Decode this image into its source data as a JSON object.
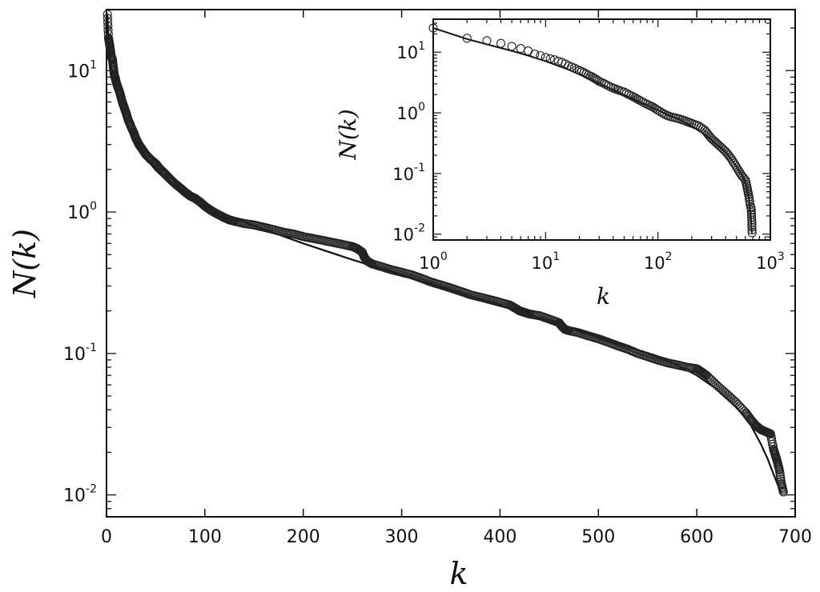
{
  "chart_data": [
    {
      "type": "scatter",
      "title": "",
      "xlabel": "k",
      "ylabel": "N(k)",
      "xlim": [
        0,
        700
      ],
      "ylim": [
        0.007,
        27
      ],
      "yscale": "log",
      "xticks": [
        0,
        100,
        200,
        300,
        400,
        500,
        600,
        700
      ],
      "xtick_labels": [
        "0",
        "100",
        "200",
        "300",
        "400",
        "500",
        "600",
        "700"
      ],
      "yticks": [
        0.01,
        0.1,
        1,
        10
      ],
      "ytick_labels": [
        {
          "base": "10",
          "exp": "-2"
        },
        {
          "base": "10",
          "exp": "-1"
        },
        {
          "base": "10",
          "exp": "0"
        },
        {
          "base": "10",
          "exp": "1"
        }
      ],
      "grid": false,
      "legend": false,
      "series": [
        {
          "style": "open-circles",
          "x": [
            1,
            2,
            3,
            4,
            5,
            6,
            7,
            8,
            9,
            10,
            12,
            14,
            16,
            18,
            20,
            22,
            25,
            28,
            30,
            33,
            36,
            40,
            45,
            50,
            55,
            60,
            65,
            70,
            75,
            80,
            85,
            90,
            95,
            100,
            105,
            110,
            115,
            120,
            125,
            130,
            140,
            150,
            160,
            170,
            180,
            190,
            200,
            210,
            220,
            230,
            240,
            250,
            255,
            260,
            262,
            265,
            270,
            280,
            290,
            300,
            310,
            320,
            330,
            340,
            350,
            360,
            370,
            380,
            390,
            400,
            410,
            415,
            420,
            425,
            430,
            440,
            450,
            460,
            463,
            466,
            470,
            480,
            490,
            500,
            510,
            520,
            530,
            540,
            550,
            560,
            570,
            580,
            590,
            600,
            605,
            610,
            620,
            630,
            640,
            650,
            655,
            660,
            665,
            670,
            675,
            678,
            680,
            682,
            684,
            686,
            688
          ],
          "y": [
            25,
            17,
            15.5,
            14,
            12.5,
            12,
            10.5,
            9.3,
            8.8,
            8.2,
            7.5,
            6.8,
            6,
            5.5,
            5,
            4.5,
            4,
            3.6,
            3.3,
            3,
            2.8,
            2.55,
            2.35,
            2.2,
            2,
            1.85,
            1.7,
            1.58,
            1.48,
            1.38,
            1.3,
            1.25,
            1.18,
            1.1,
            1.04,
            0.99,
            0.95,
            0.91,
            0.88,
            0.86,
            0.83,
            0.81,
            0.78,
            0.75,
            0.72,
            0.7,
            0.67,
            0.65,
            0.63,
            0.61,
            0.59,
            0.57,
            0.55,
            0.52,
            0.48,
            0.45,
            0.43,
            0.41,
            0.39,
            0.375,
            0.36,
            0.34,
            0.32,
            0.305,
            0.29,
            0.275,
            0.26,
            0.25,
            0.24,
            0.23,
            0.22,
            0.21,
            0.2,
            0.195,
            0.19,
            0.185,
            0.175,
            0.165,
            0.155,
            0.148,
            0.145,
            0.14,
            0.133,
            0.127,
            0.12,
            0.113,
            0.107,
            0.1,
            0.095,
            0.09,
            0.086,
            0.083,
            0.08,
            0.078,
            0.074,
            0.07,
            0.06,
            0.052,
            0.045,
            0.038,
            0.034,
            0.031,
            0.029,
            0.028,
            0.027,
            0.021,
            0.019,
            0.017,
            0.015,
            0.012,
            0.0105
          ]
        },
        {
          "style": "line",
          "x": [
            1,
            2,
            3,
            5,
            7,
            10,
            15,
            20,
            30,
            40,
            50,
            60,
            80,
            100,
            125,
            150,
            200,
            250,
            300,
            350,
            400,
            450,
            500,
            550,
            580,
            600,
            620,
            640,
            655,
            665,
            672,
            678,
            683,
            686
          ],
          "y": [
            25,
            16.5,
            13.5,
            10.5,
            8.8,
            7.1,
            5.4,
            4.3,
            3.05,
            2.4,
            1.98,
            1.7,
            1.33,
            1.1,
            0.92,
            0.8,
            0.6,
            0.46,
            0.36,
            0.28,
            0.22,
            0.17,
            0.13,
            0.1,
            0.083,
            0.07,
            0.056,
            0.042,
            0.031,
            0.023,
            0.018,
            0.014,
            0.0115,
            0.0103
          ]
        }
      ]
    },
    {
      "type": "scatter",
      "title": "",
      "xlabel": "k",
      "ylabel": "N(k)",
      "xscale": "log",
      "yscale": "log",
      "xlim": [
        1,
        1000
      ],
      "ylim": [
        0.008,
        35
      ],
      "xticks": [
        1,
        10,
        100,
        1000
      ],
      "xtick_labels": [
        {
          "base": "10",
          "exp": "0"
        },
        {
          "base": "10",
          "exp": "1"
        },
        {
          "base": "10",
          "exp": "2"
        },
        {
          "base": "10",
          "exp": "3"
        }
      ],
      "yticks": [
        0.01,
        0.1,
        1,
        10
      ],
      "ytick_labels": [
        {
          "base": "10",
          "exp": "-2"
        },
        {
          "base": "10",
          "exp": "-1"
        },
        {
          "base": "10",
          "exp": "0"
        },
        {
          "base": "10",
          "exp": "1"
        }
      ],
      "grid": false,
      "legend": false,
      "series": [
        {
          "style": "open-circles",
          "x": [
            1,
            2,
            3,
            4,
            5,
            6,
            7,
            8,
            9,
            10,
            11,
            12,
            13,
            14,
            15,
            16,
            17,
            18,
            19,
            20,
            22,
            24,
            26,
            28,
            30,
            33,
            36,
            40,
            45,
            50,
            55,
            60,
            70,
            80,
            90,
            100,
            110,
            120,
            130,
            150,
            170,
            200,
            230,
            260,
            300,
            350,
            400,
            450,
            500,
            550,
            600,
            630,
            650,
            660,
            670,
            675,
            680,
            683,
            686,
            688
          ],
          "y": [
            25,
            17,
            15.5,
            14,
            12.5,
            11.5,
            10.5,
            9.3,
            8.8,
            8.2,
            7.8,
            7.5,
            7.1,
            6.8,
            6.4,
            6,
            5.7,
            5.5,
            5.2,
            5,
            4.6,
            4.2,
            3.9,
            3.6,
            3.3,
            3.05,
            2.8,
            2.55,
            2.35,
            2.2,
            2,
            1.85,
            1.58,
            1.38,
            1.25,
            1.1,
            0.99,
            0.91,
            0.86,
            0.81,
            0.75,
            0.67,
            0.61,
            0.52,
            0.375,
            0.29,
            0.23,
            0.175,
            0.127,
            0.095,
            0.078,
            0.052,
            0.038,
            0.031,
            0.028,
            0.027,
            0.021,
            0.017,
            0.013,
            0.0105
          ]
        },
        {
          "style": "line",
          "x": [
            1,
            2,
            3,
            5,
            7,
            10,
            15,
            20,
            30,
            40,
            50,
            60,
            80,
            100,
            125,
            150,
            200,
            250,
            300,
            350,
            400,
            450,
            500,
            550,
            580,
            600,
            620,
            640,
            655,
            665,
            672,
            678,
            683,
            686
          ],
          "y": [
            25,
            16.5,
            13.5,
            10.5,
            8.8,
            7.1,
            5.4,
            4.3,
            3.05,
            2.4,
            1.98,
            1.7,
            1.33,
            1.1,
            0.92,
            0.8,
            0.6,
            0.46,
            0.36,
            0.28,
            0.22,
            0.17,
            0.13,
            0.1,
            0.083,
            0.07,
            0.056,
            0.042,
            0.031,
            0.023,
            0.018,
            0.014,
            0.0115,
            0.0103
          ]
        }
      ]
    }
  ]
}
